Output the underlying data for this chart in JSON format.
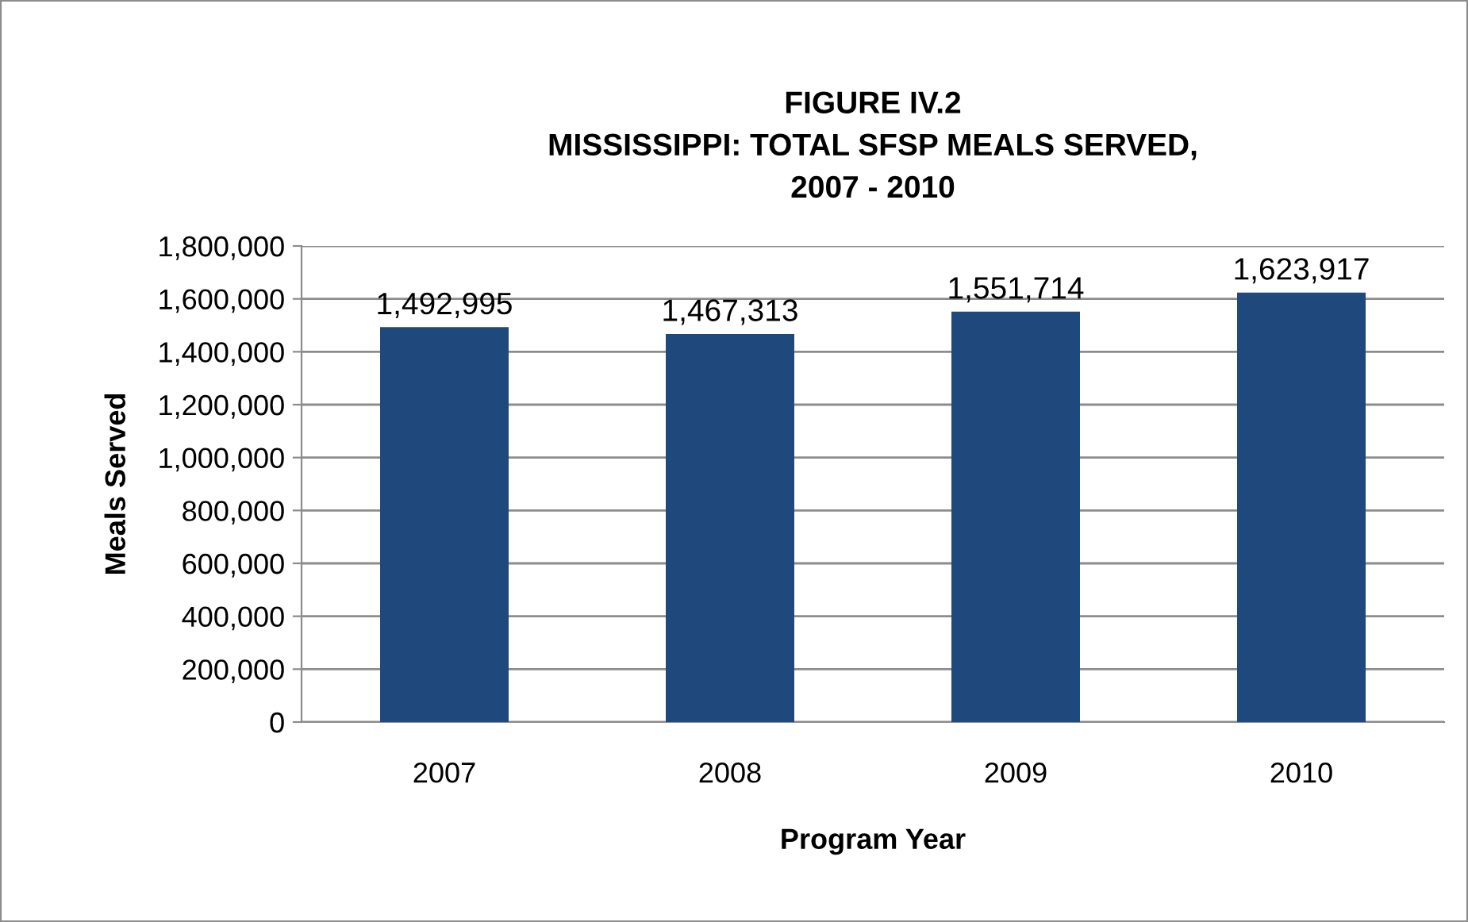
{
  "chart_data": {
    "type": "bar",
    "title": "FIGURE IV.2\nMISSISSIPPI: TOTAL SFSP MEALS SERVED,\n2007 - 2010",
    "xlabel": "Program Year",
    "ylabel": "Meals Served",
    "categories": [
      "2007",
      "2008",
      "2009",
      "2010"
    ],
    "values": [
      1492995,
      1467313,
      1551714,
      1623917
    ],
    "value_labels": [
      "1,492,995",
      "1,467,313",
      "1,551,714",
      "1,623,917"
    ],
    "color": "#1f497d",
    "ylim": [
      0,
      1800000
    ],
    "yticks": [
      0,
      {
        "value": 200000,
        "label": "200,000"
      },
      {
        "value": 400000,
        "label": "400,000"
      },
      {
        "value": 600000,
        "label": "600,000"
      },
      {
        "value": 800000,
        "label": "800,000"
      },
      {
        "value": 1000000,
        "label": "1,000,000"
      },
      {
        "value": 1200000,
        "label": "1,200,000"
      },
      {
        "value": 1400000,
        "label": "1,400,000"
      },
      {
        "value": 1600000,
        "label": "1,600,000"
      },
      {
        "value": 1800000,
        "label": "1,800,000"
      }
    ],
    "grid": "y",
    "legend": false
  }
}
